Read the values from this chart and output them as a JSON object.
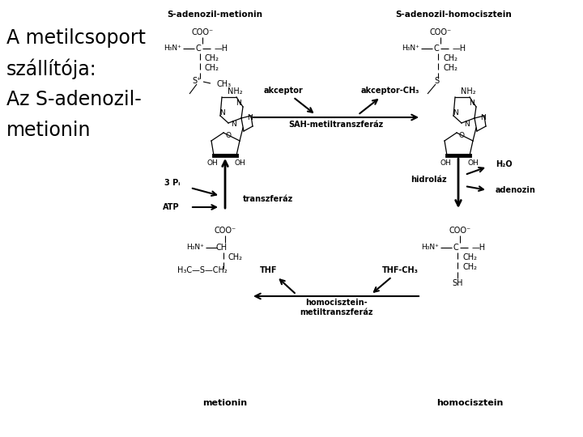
{
  "title_lines": [
    "A metilcsoport",
    "szállítója:",
    "Az S-adenozil-",
    "metionin"
  ],
  "bg_color": "#ffffff",
  "text_color": "#000000",
  "label_sam": "S-adenozil-metionin",
  "label_sah": "S-adenozil-homocisztein",
  "label_akceptor": "akceptor",
  "label_akceptor_ch3": "akceptor-CH₃",
  "label_sah_transferase": "SAH-metiltranszferáz",
  "label_3pi": "3 Pᵢ",
  "label_transzferaz": "transzferáz",
  "label_atp": "ATP",
  "label_h2o": "H₂O",
  "label_hidrolaz": "hidroláz",
  "label_adenozin": "adenozin",
  "label_thf": "THF",
  "label_thf_ch3": "THF-CH₃",
  "label_homocisztein_transferase": "homocisztein-\nmetiltranszferáz",
  "label_metionin": "metionin",
  "label_homocisztein": "homocisztein"
}
